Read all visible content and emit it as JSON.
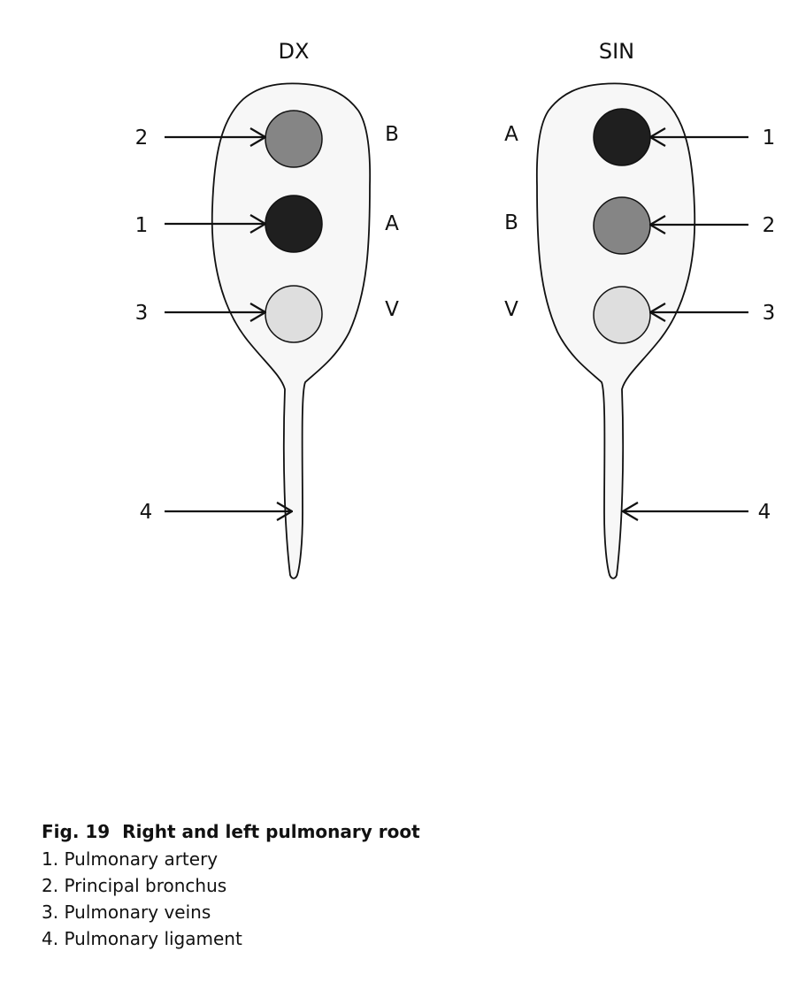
{
  "sides": [
    {
      "title": "DX",
      "letters": [
        "B",
        "A",
        "V"
      ],
      "labels": [
        "2",
        "1",
        "3",
        "4"
      ]
    },
    {
      "title": "SIN",
      "letters": [
        "A",
        "B",
        "V"
      ],
      "labels": [
        "1",
        "2",
        "3",
        "4"
      ]
    }
  ],
  "caption": {
    "fig": "Fig. 19",
    "title": "Right and left pulmonary root",
    "items": [
      "1. Pulmonary artery",
      "2. Principal bronchus",
      "3. Pulmonary veins",
      "4. Pulmonary ligament"
    ]
  },
  "colors": {
    "artery": "#1f1f1f",
    "bronchus": "#858585",
    "veins": "#dedede",
    "outline": "#111111",
    "shape_fill": "#f7f7f7"
  }
}
